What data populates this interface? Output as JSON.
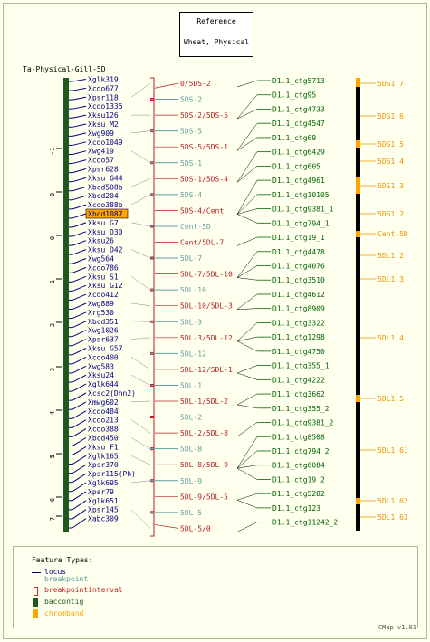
{
  "reference": {
    "title": "Reference",
    "subtitle": "Wheat, Physical"
  },
  "map_title": "Ta-Physical-Gill-5D",
  "axis_ticks": [
    "-1",
    "0",
    "0",
    "1",
    "2",
    "3",
    "4",
    "5",
    "5",
    "6",
    "7"
  ],
  "loci": [
    "Xglk319",
    "Xcdo677",
    "Xpsr118",
    "Xcdo1335",
    "Xksu126",
    "Xksu M2",
    "Xwg909",
    "Xcdo1049",
    "Xwg419",
    "Xcdo57",
    "Xpsr628",
    "Xksu G44",
    "Xbcd508b",
    "Xbcd204",
    "Xcdo388b",
    "Xbcd1087",
    "Xksu G7",
    "Xksu D30",
    "Xksu26",
    "Xksu D42",
    "Xwg564",
    "Xcdo786",
    "Xksu S1",
    "Xksu G12",
    "Xcdo412",
    "Xwg889",
    "Xrg530",
    "Xbcd351",
    "Xwg1026",
    "Xpsr637",
    "Xksu G57",
    "Xcdo400",
    "Xwg583",
    "Xksu24",
    "Xglk644",
    "Xcsc2(Dhn2)",
    "Xmwg602",
    "Xcdo484",
    "Xcdo213",
    "Xcdo388",
    "Xbcd450",
    "Xksu F1",
    "Xglk165",
    "Xpsr370",
    "Xpsr115(Ph)",
    "Xglk695",
    "Xpsr79",
    "Xglk651",
    "Xpsr145",
    "Xabc309"
  ],
  "highlight_locus": "Xbcd1087",
  "intervals": [
    {
      "label": "0/5DS-2",
      "kind": "interval"
    },
    {
      "label": "5DS-2",
      "kind": "point"
    },
    {
      "label": "5DS-2/5DS-5",
      "kind": "interval"
    },
    {
      "label": "5DS-5",
      "kind": "point"
    },
    {
      "label": "5DS-5/5DS-1",
      "kind": "interval"
    },
    {
      "label": "5DS-1",
      "kind": "point"
    },
    {
      "label": "5DS-1/5DS-4",
      "kind": "interval"
    },
    {
      "label": "5DS-4",
      "kind": "point"
    },
    {
      "label": "5DS-4/Cent",
      "kind": "interval"
    },
    {
      "label": "Cent-5D",
      "kind": "point"
    },
    {
      "label": "Cent/5DL-7",
      "kind": "interval"
    },
    {
      "label": "5DL-7",
      "kind": "point"
    },
    {
      "label": "5DL-7/5DL-10",
      "kind": "interval"
    },
    {
      "label": "5DL-10",
      "kind": "point"
    },
    {
      "label": "5DL-10/5DL-3",
      "kind": "interval"
    },
    {
      "label": "5DL-3",
      "kind": "point"
    },
    {
      "label": "5DL-3/5DL-12",
      "kind": "interval"
    },
    {
      "label": "5DL-12",
      "kind": "point"
    },
    {
      "label": "5DL-12/5DL-1",
      "kind": "interval"
    },
    {
      "label": "5DL-1",
      "kind": "point"
    },
    {
      "label": "5DL-1/5DL-2",
      "kind": "interval"
    },
    {
      "label": "5DL-2",
      "kind": "point"
    },
    {
      "label": "5DL-2/5DL-8",
      "kind": "interval"
    },
    {
      "label": "5DL-8",
      "kind": "point"
    },
    {
      "label": "5DL-8/5DL-9",
      "kind": "interval"
    },
    {
      "label": "5DL-9",
      "kind": "point"
    },
    {
      "label": "5DL-9/5DL-5",
      "kind": "interval"
    },
    {
      "label": "5DL-5",
      "kind": "point"
    },
    {
      "label": "5DL-5/0",
      "kind": "interval"
    }
  ],
  "contigs": [
    "D1.1_ctg5713",
    "D1.1_ctg95",
    "D1.1_ctg4733",
    "D1.1_ctg4547",
    "D1.1_ctg69",
    "D1.1_ctg6429",
    "D1.1_ctg605",
    "D1.1_ctg4961",
    "D1.1_ctg10105",
    "D1.1_ctg9381_1",
    "D1.1_ctg794_1",
    "D1.1_ctg19_1",
    "D1.1_ctg4478",
    "D1.1_ctg4076",
    "D1.1_ctg3510",
    "D1.1_ctg4612",
    "D1.1_ctg8909",
    "D1.1_ctg3322",
    "D1.1_ctg1298",
    "D1.1_ctg4750",
    "D1.1_ctg355_1",
    "D1.1_ctg4222",
    "D1.1_ctg3662",
    "D1.1_ctg355_2",
    "D1.1_ctg9381_2",
    "D1.1_ctg8508",
    "D1.1_ctg794_2",
    "D1.1_ctg6084",
    "D1.1_ctg19_2",
    "D1.1_ctg5282",
    "D1.1_ctg123",
    "D1.1_ctg11242_2"
  ],
  "chrombands": [
    "5DS1.7",
    "5DS1.6",
    "5DS1.5",
    "5DS1.4",
    "5DS1.3",
    "5DS1.2",
    "Cent-5D",
    "5DL1.2",
    "5DL1.3",
    "5DL1.4",
    "5DL1.5",
    "5DL1.61",
    "5DL1.62",
    "5DL1.63"
  ],
  "legend": {
    "title": "Feature Types:",
    "items": [
      {
        "label": "locus",
        "color": "#000080"
      },
      {
        "label": "breakpoint",
        "color": "#5f9ea0"
      },
      {
        "label": "breakpointinterval",
        "color": "#cc2222"
      },
      {
        "label": "baccontig",
        "color": "#1e5a1e"
      },
      {
        "label": "chromband",
        "color": "#ffa500"
      }
    ]
  },
  "version": "CMap v1.01",
  "colors": {
    "locus": "#000080",
    "breakpoint": "#5f9ea0",
    "interval": "#b22222",
    "contig": "#006400",
    "band": "#e69500",
    "highlight": "#ffa500"
  }
}
